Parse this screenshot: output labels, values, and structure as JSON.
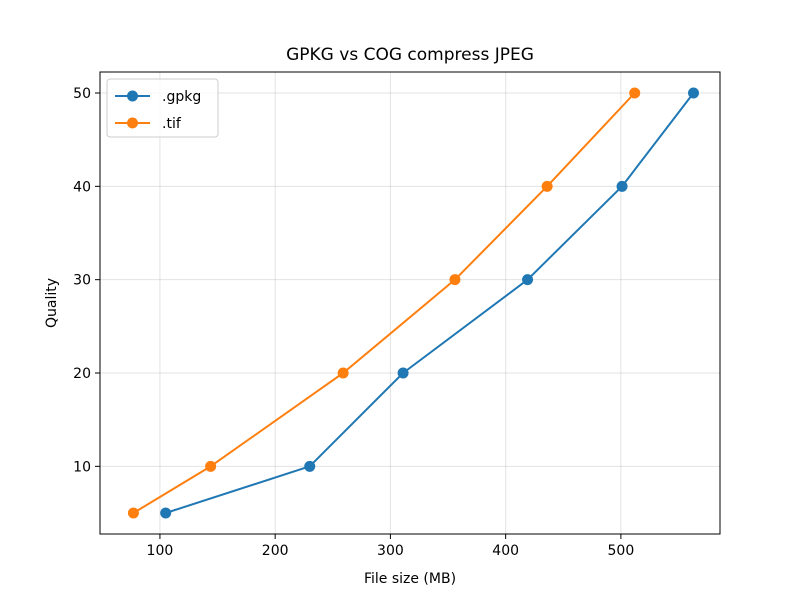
{
  "chart_data": {
    "type": "line",
    "title": "GPKG vs COG compress JPEG",
    "xlabel": "File size (MB)",
    "ylabel": "Quality",
    "xlim": [
      48,
      586
    ],
    "ylim": [
      2.75,
      52.25
    ],
    "xticks": [
      100,
      200,
      300,
      400,
      500
    ],
    "yticks": [
      10,
      20,
      30,
      40,
      50
    ],
    "grid": true,
    "legend_position": "upper-left",
    "series": [
      {
        "name": ".gpkg",
        "color": "#1f77b4",
        "marker": "circle",
        "x": [
          105,
          230,
          311,
          419,
          501,
          563
        ],
        "y": [
          5,
          10,
          20,
          30,
          40,
          50
        ]
      },
      {
        "name": ".tif",
        "color": "#ff7f0e",
        "marker": "circle",
        "x": [
          77,
          144,
          259,
          356,
          436,
          512
        ],
        "y": [
          5,
          10,
          20,
          30,
          40,
          50
        ]
      }
    ]
  }
}
